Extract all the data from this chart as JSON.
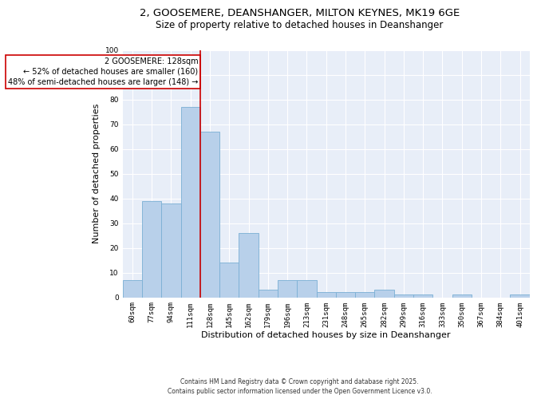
{
  "title1": "2, GOOSEMERE, DEANSHANGER, MILTON KEYNES, MK19 6GE",
  "title2": "Size of property relative to detached houses in Deanshanger",
  "xlabel": "Distribution of detached houses by size in Deanshanger",
  "ylabel": "Number of detached properties",
  "categories": [
    "60sqm",
    "77sqm",
    "94sqm",
    "111sqm",
    "128sqm",
    "145sqm",
    "162sqm",
    "179sqm",
    "196sqm",
    "213sqm",
    "231sqm",
    "248sqm",
    "265sqm",
    "282sqm",
    "299sqm",
    "316sqm",
    "333sqm",
    "350sqm",
    "367sqm",
    "384sqm",
    "401sqm"
  ],
  "values": [
    7,
    39,
    38,
    77,
    67,
    14,
    26,
    3,
    7,
    7,
    2,
    2,
    2,
    3,
    1,
    1,
    0,
    1,
    0,
    0,
    1
  ],
  "bar_color": "#b8d0ea",
  "bar_edge_color": "#7aafd4",
  "ref_line_color": "#cc0000",
  "ref_line_index": 4,
  "annotation_text": "2 GOOSEMERE: 128sqm\n← 52% of detached houses are smaller (160)\n48% of semi-detached houses are larger (148) →",
  "annotation_box_edgecolor": "#cc0000",
  "background_color": "#e8eef8",
  "grid_color": "#ffffff",
  "ylim": [
    0,
    100
  ],
  "yticks": [
    0,
    10,
    20,
    30,
    40,
    50,
    60,
    70,
    80,
    90,
    100
  ],
  "footer1": "Contains HM Land Registry data © Crown copyright and database right 2025.",
  "footer2": "Contains public sector information licensed under the Open Government Licence v3.0.",
  "title_fontsize": 9.5,
  "subtitle_fontsize": 8.5,
  "tick_fontsize": 6.5,
  "ylabel_fontsize": 8,
  "xlabel_fontsize": 8,
  "annotation_fontsize": 7,
  "footer_fontsize": 5.5
}
